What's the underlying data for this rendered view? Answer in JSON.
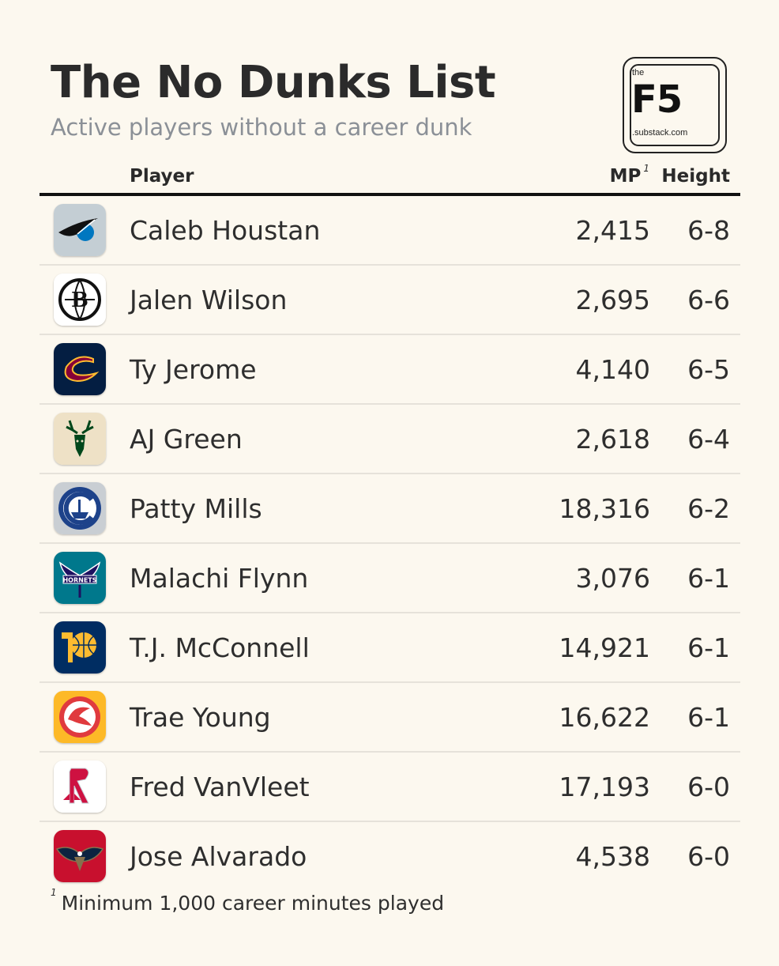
{
  "title": "The No Dunks List",
  "subtitle": "Active players without a career dunk",
  "brand": {
    "the": "the",
    "name": "F5",
    "site": ".substack.com"
  },
  "columns": {
    "player": "Player",
    "mp": "MP",
    "mp_note": "1",
    "height": "Height"
  },
  "rows": [
    {
      "player": "Caleb Houstan",
      "mp": "2,415",
      "height": "6-8",
      "team_logo": "orlando-magic-icon"
    },
    {
      "player": "Jalen Wilson",
      "mp": "2,695",
      "height": "6-6",
      "team_logo": "brooklyn-nets-icon"
    },
    {
      "player": "Ty Jerome",
      "mp": "4,140",
      "height": "6-5",
      "team_logo": "cleveland-cavaliers-icon"
    },
    {
      "player": "AJ Green",
      "mp": "2,618",
      "height": "6-4",
      "team_logo": "milwaukee-bucks-icon"
    },
    {
      "player": "Patty Mills",
      "mp": "18,316",
      "height": "6-2",
      "team_logo": "la-clippers-icon"
    },
    {
      "player": "Malachi Flynn",
      "mp": "3,076",
      "height": "6-1",
      "team_logo": "charlotte-hornets-icon"
    },
    {
      "player": "T.J. McConnell",
      "mp": "14,921",
      "height": "6-1",
      "team_logo": "indiana-pacers-icon"
    },
    {
      "player": "Trae Young",
      "mp": "16,622",
      "height": "6-1",
      "team_logo": "atlanta-hawks-icon"
    },
    {
      "player": "Fred VanVleet",
      "mp": "17,193",
      "height": "6-0",
      "team_logo": "houston-rockets-icon"
    },
    {
      "player": "Jose Alvarado",
      "mp": "4,538",
      "height": "6-0",
      "team_logo": "new-orleans-pelicans-icon"
    }
  ],
  "footnote": {
    "mark": "1",
    "text": "Minimum 1,000 career minutes played"
  },
  "colors": {
    "background": "#fcf8ef",
    "text": "#2e2e2e",
    "subtitle": "#8b9097",
    "rule": "#111111"
  }
}
